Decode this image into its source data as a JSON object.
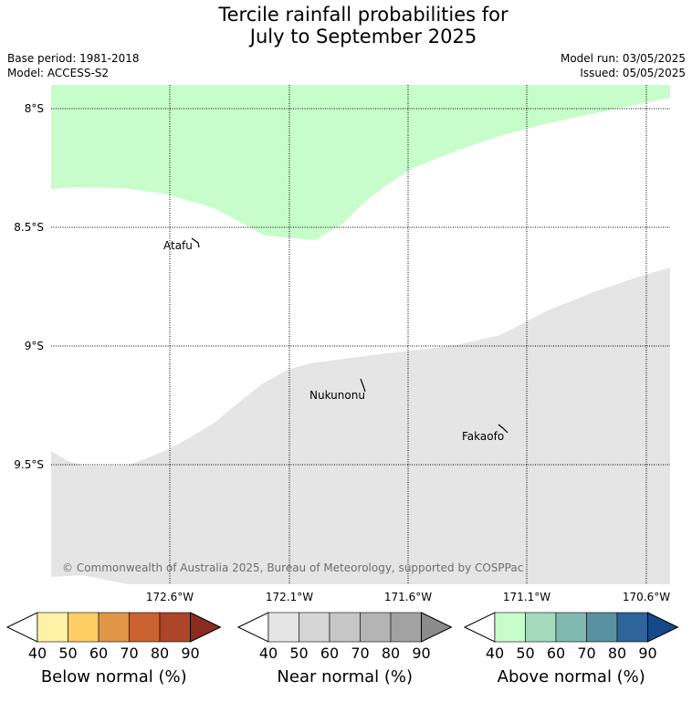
{
  "title": {
    "line1": "Tercile rainfall probabilities for",
    "line2": "July to September 2025"
  },
  "meta": {
    "base_period": "Base period: 1981-2018",
    "model": "Model: ACCESS-S2",
    "model_run": "Model run: 03/05/2025",
    "issued": "Issued: 05/05/2025"
  },
  "map": {
    "lat_labels": [
      "8°S",
      "8.5°S",
      "9°S",
      "9.5°S"
    ],
    "lon_labels": [
      "172.6°W",
      "172.1°W",
      "171.6°W",
      "171.1°W",
      "170.6°W"
    ],
    "places": [
      "Atafu",
      "Nukunonu",
      "Fakaofo"
    ],
    "copyright": "© Commonwealth of Australia 2025, Bureau of Meteorology, supported by COSPPac",
    "regions": [
      {
        "category": "Above normal",
        "probability_band": "40-50",
        "color": "#c7fdca"
      },
      {
        "category": "Near normal",
        "probability_band": "40-50",
        "color": "#e5e5e5"
      }
    ]
  },
  "colorbars": [
    {
      "name": "below-normal",
      "label": "Below normal (%)",
      "ticks": [
        "40",
        "50",
        "60",
        "70",
        "80",
        "90"
      ],
      "colors": [
        "#fff1a6",
        "#fdcd63",
        "#e09547",
        "#cc622f",
        "#ad4528",
        "#8c2b1f"
      ]
    },
    {
      "name": "near-normal",
      "label": "Near normal (%)",
      "ticks": [
        "40",
        "50",
        "60",
        "70",
        "80",
        "90"
      ],
      "colors": [
        "#e5e5e5",
        "#d6d6d6",
        "#c6c6c6",
        "#b4b4b4",
        "#a2a2a2",
        "#8b8b8b"
      ]
    },
    {
      "name": "above-normal",
      "label": "Above normal (%)",
      "ticks": [
        "40",
        "50",
        "60",
        "70",
        "80",
        "90"
      ],
      "colors": [
        "#c7fdca",
        "#a4d9bc",
        "#80b9b0",
        "#5892a0",
        "#2d6499",
        "#16498a"
      ]
    }
  ]
}
